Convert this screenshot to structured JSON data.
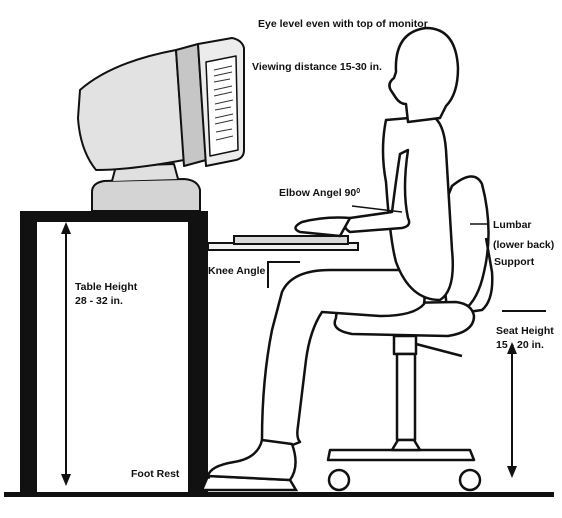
{
  "diagram": {
    "labels": {
      "eye_level": "Eye level even with top of monitor",
      "viewing_distance": "Viewing distance 15-30 in.",
      "elbow_angle": "Elbow Angel 90",
      "elbow_angle_degree": "0",
      "lumbar_line1": "Lumbar",
      "lumbar_line2": "(lower back)",
      "lumbar_line3": "Support",
      "knee_angle": "Knee Angle",
      "table_height_line1": "Table Height",
      "table_height_line2": "28 - 32 in.",
      "seat_height_line1": "Seat Height",
      "seat_height_line2": "15 - 20 in.",
      "foot_rest": "Foot Rest"
    },
    "colors": {
      "ink": "#111111",
      "monitor_fill": "#dcdcdc",
      "background": "#ffffff"
    }
  }
}
